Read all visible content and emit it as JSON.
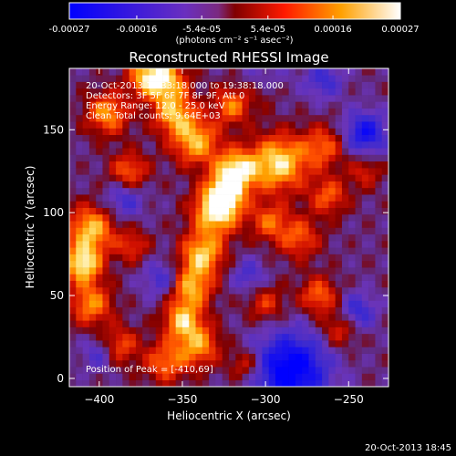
{
  "colorbar": {
    "tick_labels": [
      "-0.00027",
      "-0.00016",
      "-5.4e-05",
      "5.4e-05",
      "0.00016",
      "0.00027"
    ],
    "tick_values": [
      -0.00027,
      -0.00016,
      -5.4e-05,
      5.4e-05,
      0.00016,
      0.00027
    ],
    "range": [
      -0.00027,
      0.00027
    ],
    "units": "(photons cm⁻² s⁻¹ asec⁻²)"
  },
  "chart_data": {
    "type": "heatmap",
    "title": "Reconstructed RHESSI Image",
    "xlabel": "Heliocentric X (arcsec)",
    "ylabel": "Heliocentric Y (arcsec)",
    "xlim": [
      -418,
      -226
    ],
    "ylim": [
      -5,
      187
    ],
    "x_ticks": [
      -400,
      -350,
      -300,
      -250
    ],
    "y_ticks": [
      0,
      50,
      100,
      150
    ],
    "colorscale": [
      "#0000ff",
      "#5a2ab0",
      "#800000",
      "#ff0000",
      "#ff9900",
      "#ffffff"
    ],
    "annotations": [
      "20-Oct-2013 19:33:18.000 to 19:38:18.000",
      "Detectors: 3F 5F 6F 7F 8F 9F, Att 0",
      "Energy Range: 12.0 - 25.0 keV",
      "Clean     Total counts: 9.64E+03"
    ],
    "peak_label": "Position of Peak = [-410,69]",
    "peak_position": [
      -410,
      69
    ]
  },
  "footer": {
    "timestamp": "20-Oct-2013 18:45"
  }
}
